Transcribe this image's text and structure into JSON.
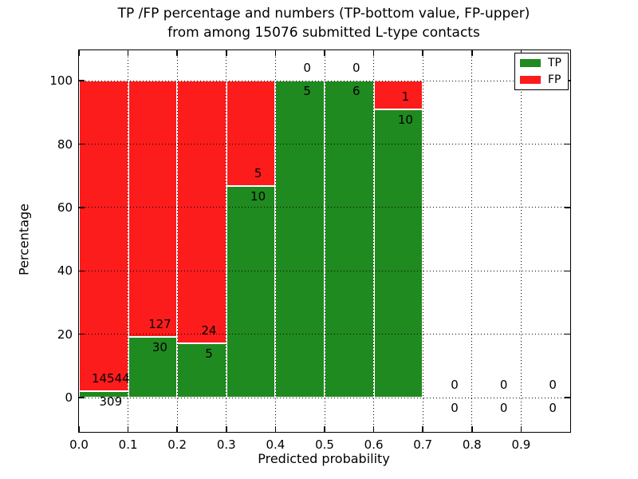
{
  "title": {
    "line1": "TP /FP percentage and numbers (TP-bottom value, FP-upper)",
    "line2": "from among 15076 submitted L-type contacts"
  },
  "chart_data": {
    "type": "bar",
    "stacked": true,
    "title": "TP /FP percentage and numbers (TP-bottom value, FP-upper) from among 15076 submitted L-type contacts",
    "xlabel": "Predicted probability",
    "ylabel": "Percentage",
    "total_contacts": 15076,
    "bin_edges": [
      0.0,
      0.1,
      0.2,
      0.3,
      0.4,
      0.5,
      0.6,
      0.7,
      0.8,
      0.9,
      1.0
    ],
    "series": [
      {
        "name": "TP",
        "color": "#1f8a1f",
        "values": [
          309,
          30,
          5,
          10,
          5,
          6,
          10,
          0,
          0,
          0
        ]
      },
      {
        "name": "FP",
        "color": "#fd1c1c",
        "values": [
          14544,
          127,
          24,
          5,
          0,
          0,
          1,
          0,
          0,
          0
        ]
      }
    ],
    "bar_value_mode": "percent_of_bin_total",
    "bar_edge_color": "#ffffff",
    "x_ticks": [
      "0.0",
      "0.1",
      "0.2",
      "0.3",
      "0.4",
      "0.5",
      "0.6",
      "0.7",
      "0.8",
      "0.9"
    ],
    "y_ticks": [
      0,
      20,
      40,
      60,
      80,
      100
    ],
    "x_gridlines": [
      0.1,
      0.2,
      0.3,
      0.4,
      0.5,
      0.6,
      0.7,
      0.8,
      0.9
    ],
    "xlim": [
      0.0,
      1.0
    ],
    "ylim": [
      -10.8,
      109.6
    ],
    "grid": "dotted",
    "grid_color": "#000000",
    "legend": {
      "position": "upper right",
      "entries": [
        {
          "label": "TP",
          "color": "#1f8a1f"
        },
        {
          "label": "FP",
          "color": "#fd1c1c"
        }
      ]
    }
  }
}
